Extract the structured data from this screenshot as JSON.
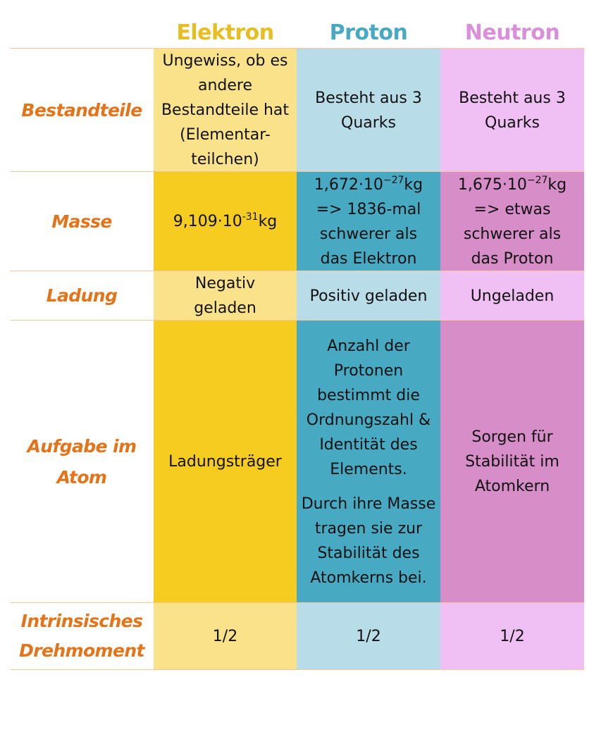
{
  "columns": {
    "elektron": "Elektron",
    "proton": "Proton",
    "neutron": "Neutron"
  },
  "rows": {
    "bestandteile": {
      "label": "Bestandteile",
      "elektron": "Ungewiss, ob es andere Bestandteile hat (Elementar-teilchen)",
      "proton": "Besteht aus 3 Quarks",
      "neutron": "Besteht aus 3 Quarks"
    },
    "masse": {
      "label": "Masse",
      "elektron_mantissa": "9,109·10",
      "elektron_exp": "-31",
      "elektron_unit": "kg",
      "proton_mantissa": "1,672·10",
      "proton_exp": "−27",
      "proton_unit": "kg",
      "proton_rest": "=> 1836-mal schwerer als das Elektron",
      "neutron_mantissa": "1,675·10",
      "neutron_exp": "−27",
      "neutron_unit": "kg",
      "neutron_rest": "=> etwas schwerer als das Proton"
    },
    "ladung": {
      "label": "Ladung",
      "elektron": "Negativ geladen",
      "proton": "Positiv geladen",
      "neutron": "Ungeladen"
    },
    "aufgabe": {
      "label": "Aufgabe im Atom",
      "elektron": "Ladungsträger",
      "proton_p1": "Anzahl der Protonen bestimmt die Ordnungszahl & Identität des Elements.",
      "proton_p2": "Durch ihre Masse tragen sie zur Stabilität des Atomkerns bei.",
      "neutron": "Sorgen für Stabilität im Atomkern"
    },
    "drehmoment": {
      "label": "Intrinsisches Drehmoment",
      "elektron": "1/2",
      "proton": "1/2",
      "neutron": "1/2"
    }
  },
  "colors": {
    "label_orange": "#e47419",
    "elektron_light": "#f9e28a",
    "elektron_dark": "#f5cc1f",
    "proton_light": "#b8dde8",
    "proton_dark": "#48a9c2",
    "neutron_light": "#f0c0f4",
    "neutron_dark": "#d78ec8"
  }
}
